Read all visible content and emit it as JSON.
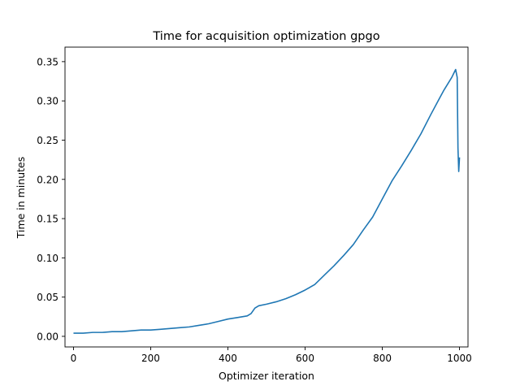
{
  "chart_data": {
    "type": "line",
    "title": "Time for acquisition optimization gpgo",
    "xlabel": "Optimizer iteration",
    "ylabel": "Time in minutes",
    "xlim": [
      -22,
      1022
    ],
    "ylim": [
      -0.0135,
      0.3685
    ],
    "xticks": [
      0,
      200,
      400,
      600,
      800,
      1000
    ],
    "xtick_labels": [
      "0",
      "200",
      "400",
      "600",
      "800",
      "1000"
    ],
    "yticks": [
      0.0,
      0.05,
      0.1,
      0.15,
      0.2,
      0.25,
      0.3,
      0.35
    ],
    "ytick_labels": [
      "0.00",
      "0.05",
      "0.10",
      "0.15",
      "0.20",
      "0.25",
      "0.30",
      "0.35"
    ],
    "grid": false,
    "series": [
      {
        "color": "#1f77b4",
        "x": [
          0,
          25,
          50,
          75,
          100,
          125,
          150,
          175,
          200,
          225,
          250,
          275,
          300,
          325,
          350,
          375,
          400,
          425,
          450,
          460,
          470,
          480,
          500,
          525,
          550,
          575,
          600,
          625,
          650,
          675,
          700,
          725,
          750,
          775,
          800,
          825,
          850,
          875,
          900,
          925,
          950,
          960,
          970,
          980,
          985,
          990,
          994,
          996,
          998,
          1000
        ],
        "y": [
          0.004,
          0.004,
          0.005,
          0.005,
          0.006,
          0.006,
          0.007,
          0.008,
          0.008,
          0.009,
          0.01,
          0.011,
          0.012,
          0.014,
          0.016,
          0.019,
          0.022,
          0.024,
          0.026,
          0.029,
          0.036,
          0.039,
          0.041,
          0.044,
          0.048,
          0.053,
          0.059,
          0.066,
          0.078,
          0.09,
          0.103,
          0.117,
          0.135,
          0.152,
          0.175,
          0.198,
          0.217,
          0.237,
          0.258,
          0.282,
          0.305,
          0.314,
          0.322,
          0.33,
          0.335,
          0.34,
          0.33,
          0.24,
          0.21,
          0.228
        ]
      }
    ]
  }
}
